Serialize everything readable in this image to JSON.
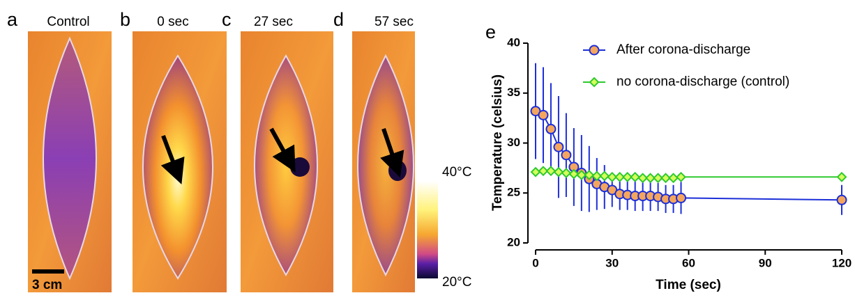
{
  "panels": [
    {
      "letter": "a",
      "title": "Control"
    },
    {
      "letter": "b",
      "title": "0 sec"
    },
    {
      "letter": "c",
      "title": "27 sec"
    },
    {
      "letter": "d",
      "title": "57 sec"
    }
  ],
  "scale_bar": "3 cm",
  "colorbar": {
    "max_label": "40°C",
    "min_label": "20°C"
  },
  "chart_data": {
    "type": "line",
    "letter": "e",
    "x_label": "Time (sec)",
    "y_label": "Temperature (celsius)",
    "xlim": [
      0,
      120
    ],
    "xticks": [
      0,
      30,
      60,
      90,
      120
    ],
    "ylim": [
      20,
      40
    ],
    "yticks": [
      20,
      25,
      30,
      35,
      40
    ],
    "series": [
      {
        "name": "After corona-discharge",
        "color": "#1c2fd8",
        "marker": "circle",
        "marker_fill": "#f4a55e",
        "x": [
          0,
          3,
          6,
          9,
          12,
          15,
          18,
          21,
          24,
          27,
          30,
          33,
          36,
          39,
          42,
          45,
          48,
          51,
          54,
          57,
          120
        ],
        "values": [
          33.2,
          32.8,
          31.4,
          29.6,
          28.8,
          27.6,
          27.0,
          26.4,
          25.9,
          25.6,
          25.3,
          24.9,
          24.8,
          24.7,
          24.7,
          24.7,
          24.6,
          24.4,
          24.4,
          24.5,
          24.3
        ],
        "errors": [
          4.8,
          4.8,
          4.6,
          5.1,
          4.2,
          3.9,
          3.8,
          3.3,
          2.6,
          2.2,
          1.7,
          1.6,
          1.5,
          1.5,
          1.5,
          1.5,
          1.4,
          1.4,
          1.4,
          1.6,
          1.5
        ]
      },
      {
        "name": "no corona-discharge (control)",
        "color": "#2ec92e",
        "marker": "diamond",
        "marker_fill": "#d6ff5c",
        "x": [
          0,
          3,
          6,
          9,
          12,
          15,
          18,
          21,
          24,
          27,
          30,
          33,
          36,
          39,
          42,
          45,
          48,
          51,
          54,
          57,
          120
        ],
        "values": [
          27.1,
          27.2,
          27.2,
          27.1,
          27.0,
          26.9,
          26.8,
          26.8,
          26.7,
          26.7,
          26.6,
          26.6,
          26.6,
          26.6,
          26.5,
          26.5,
          26.5,
          26.5,
          26.5,
          26.6,
          26.6
        ]
      }
    ]
  }
}
